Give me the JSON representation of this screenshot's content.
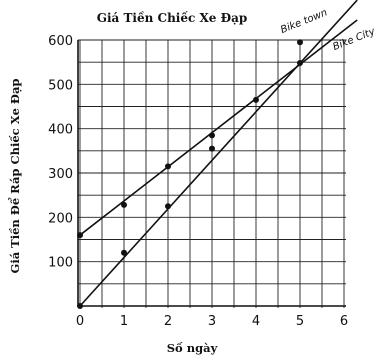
{
  "chart_data": {
    "type": "line",
    "title": "Giá Tiền Chiếc Xe Đạp",
    "xlabel": "Số ngày",
    "ylabel": "Giá Tiền Để Ráp Chiếc Xe Đạp",
    "xlim": [
      0,
      6
    ],
    "ylim": [
      0,
      600
    ],
    "x_ticks": [
      0,
      1,
      2,
      3,
      4,
      5,
      6
    ],
    "y_ticks": [
      100,
      200,
      300,
      400,
      500,
      600
    ],
    "grid": true,
    "series": [
      {
        "name": "Bike town",
        "points": [
          [
            0,
            0
          ],
          [
            1,
            120
          ],
          [
            2,
            225
          ],
          [
            3,
            355
          ],
          [
            5,
            595
          ]
        ],
        "line": {
          "x": [
            0,
            6.3
          ],
          "y": [
            0,
            690
          ]
        }
      },
      {
        "name": "Bike City",
        "points": [
          [
            0,
            160
          ],
          [
            1,
            228
          ],
          [
            2,
            315
          ],
          [
            3,
            385
          ],
          [
            4,
            465
          ],
          [
            5,
            548
          ]
        ],
        "line": {
          "x": [
            0,
            6.3
          ],
          "y": [
            160,
            645
          ]
        }
      }
    ]
  },
  "colors": {
    "ink": "#111111",
    "grid": "#222222"
  }
}
